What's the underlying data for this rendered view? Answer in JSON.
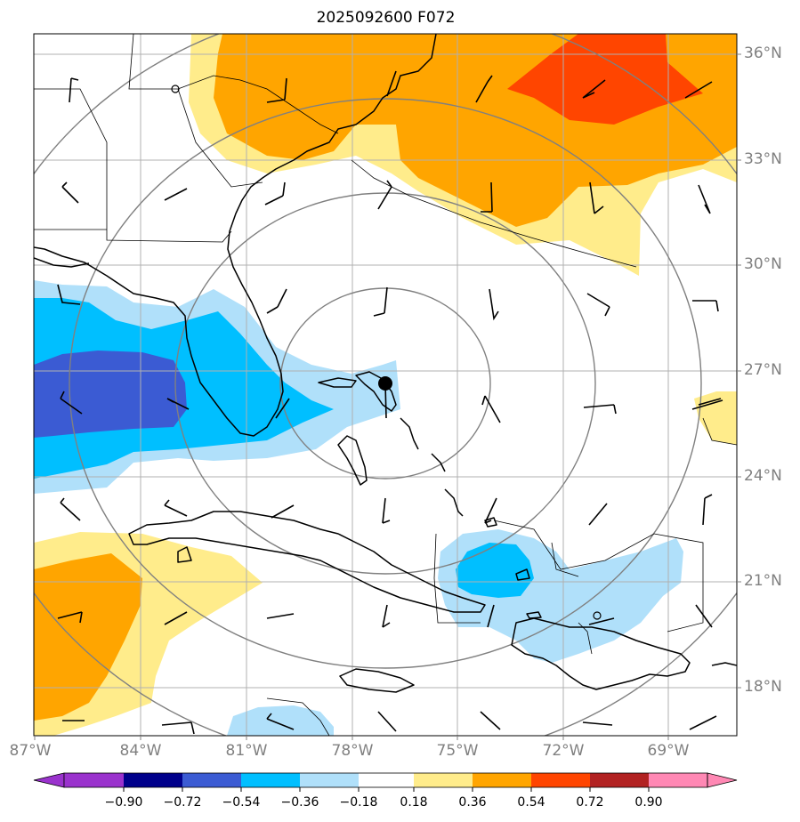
{
  "title": "2025092600 F072",
  "map": {
    "lon_labels": [
      "87°W",
      "84°W",
      "81°W",
      "78°W",
      "75°W",
      "72°W",
      "69°W"
    ],
    "lat_labels": [
      "36°N",
      "33°N",
      "30°N",
      "27°N",
      "24°N",
      "21°N",
      "18°N"
    ],
    "storm_center_lon_lat": [
      -77.0,
      26.6
    ]
  },
  "colorbar": {
    "levels": [
      "−0.90",
      "−0.72",
      "−0.54",
      "−0.36",
      "−0.18",
      "0.18",
      "0.36",
      "0.54",
      "0.72",
      "0.90"
    ],
    "colors": [
      "#9a32cd",
      "#00008b",
      "#3b5bd3",
      "#00bfff",
      "#b0e0fa",
      "#ffffff",
      "#ffec8b",
      "#ffa500",
      "#ff4500",
      "#b22222",
      "#ff88b4"
    ]
  }
}
